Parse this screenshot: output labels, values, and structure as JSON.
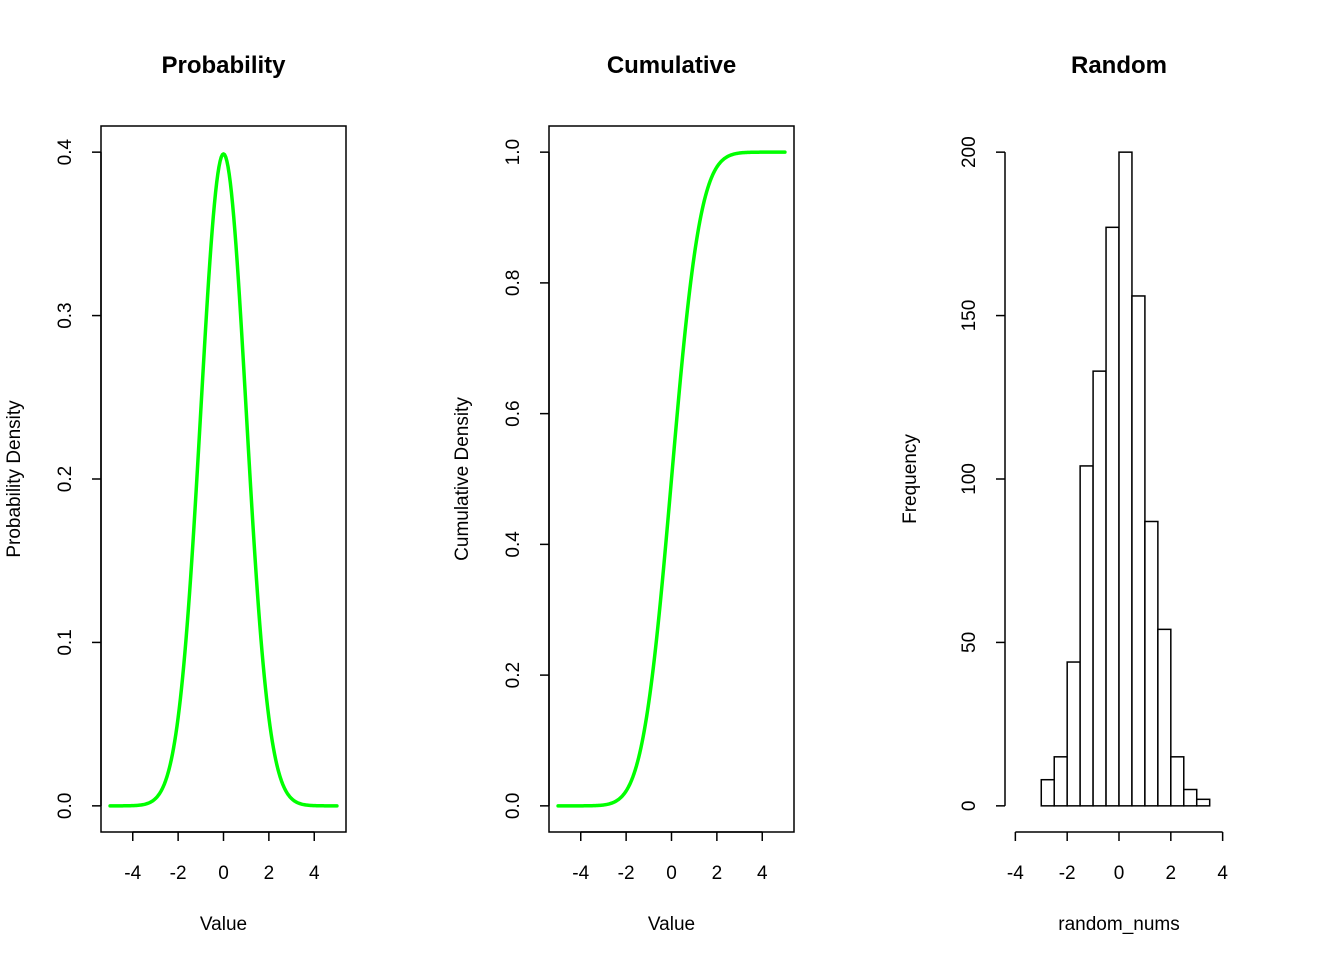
{
  "chart_data": [
    {
      "type": "line",
      "title": "Probability",
      "xlabel": "Value",
      "ylabel": "Probability Density",
      "xlim": [
        -5.4,
        5.4
      ],
      "ylim": [
        -0.016,
        0.416
      ],
      "x_ticks": [
        -4,
        -2,
        0,
        2,
        4
      ],
      "x_tick_labels": [
        "-4",
        "-2",
        "0",
        "2",
        "4"
      ],
      "y_ticks": [
        0.0,
        0.1,
        0.2,
        0.3,
        0.4
      ],
      "y_tick_labels": [
        "0.0",
        "0.1",
        "0.2",
        "0.3",
        "0.4"
      ],
      "color": "#00ff00",
      "grid": false,
      "series": [
        {
          "x": [
            -5.0,
            -4.5,
            -4.0,
            -3.5,
            -3.0,
            -2.5,
            -2.0,
            -1.5,
            -1.0,
            -0.5,
            0.0,
            0.5,
            1.0,
            1.5,
            2.0,
            2.5,
            3.0,
            3.5,
            4.0,
            4.5,
            5.0
          ],
          "y": [
            0.0,
            0.0,
            0.0001,
            0.0009,
            0.0044,
            0.0175,
            0.054,
            0.1295,
            0.242,
            0.3521,
            0.3989,
            0.3521,
            0.242,
            0.1295,
            0.054,
            0.0175,
            0.0044,
            0.0009,
            0.0001,
            0.0,
            0.0
          ]
        }
      ]
    },
    {
      "type": "line",
      "title": "Cumulative",
      "xlabel": "Value",
      "ylabel": "Cumulative Density",
      "xlim": [
        -5.4,
        5.4
      ],
      "ylim": [
        -0.04,
        1.04
      ],
      "x_ticks": [
        -4,
        -2,
        0,
        2,
        4
      ],
      "x_tick_labels": [
        "-4",
        "-2",
        "0",
        "2",
        "4"
      ],
      "y_ticks": [
        0.0,
        0.2,
        0.4,
        0.6,
        0.8,
        1.0
      ],
      "y_tick_labels": [
        "0.0",
        "0.2",
        "0.4",
        "0.6",
        "0.8",
        "1.0"
      ],
      "color": "#00ff00",
      "grid": false,
      "series": [
        {
          "x": [
            -5.0,
            -4.5,
            -4.0,
            -3.5,
            -3.0,
            -2.5,
            -2.0,
            -1.5,
            -1.0,
            -0.5,
            0.0,
            0.5,
            1.0,
            1.5,
            2.0,
            2.5,
            3.0,
            3.5,
            4.0,
            4.5,
            5.0
          ],
          "y": [
            0.0,
            0.0,
            0.0,
            0.0002,
            0.0013,
            0.0062,
            0.0228,
            0.0668,
            0.1587,
            0.3085,
            0.5,
            0.6915,
            0.8413,
            0.9332,
            0.9772,
            0.9938,
            0.9987,
            0.9998,
            1.0,
            1.0,
            1.0
          ]
        }
      ]
    },
    {
      "type": "bar",
      "title": "Random",
      "xlabel": "random_nums",
      "ylabel": "Frequency",
      "xlim": [
        -4.4,
        4.4
      ],
      "ylim": [
        -8,
        208
      ],
      "x_ticks": [
        -4,
        -2,
        0,
        2,
        4
      ],
      "x_tick_labels": [
        "-4",
        "-2",
        "0",
        "2",
        "4"
      ],
      "y_ticks": [
        0,
        50,
        100,
        150,
        200
      ],
      "y_tick_labels": [
        "0",
        "50",
        "100",
        "150",
        "200"
      ],
      "grid": false,
      "bins": [
        {
          "x0": -3.0,
          "x1": -2.5,
          "count": 8
        },
        {
          "x0": -2.5,
          "x1": -2.0,
          "count": 15
        },
        {
          "x0": -2.0,
          "x1": -1.5,
          "count": 44
        },
        {
          "x0": -1.5,
          "x1": -1.0,
          "count": 104
        },
        {
          "x0": -1.0,
          "x1": -0.5,
          "count": 133
        },
        {
          "x0": -0.5,
          "x1": 0.0,
          "count": 177
        },
        {
          "x0": 0.0,
          "x1": 0.5,
          "count": 200
        },
        {
          "x0": 0.5,
          "x1": 1.0,
          "count": 156
        },
        {
          "x0": 1.0,
          "x1": 1.5,
          "count": 87
        },
        {
          "x0": 1.5,
          "x1": 2.0,
          "count": 54
        },
        {
          "x0": 2.0,
          "x1": 2.5,
          "count": 15
        },
        {
          "x0": 2.5,
          "x1": 3.0,
          "count": 5
        },
        {
          "x0": 3.0,
          "x1": 3.5,
          "count": 2
        }
      ]
    }
  ]
}
